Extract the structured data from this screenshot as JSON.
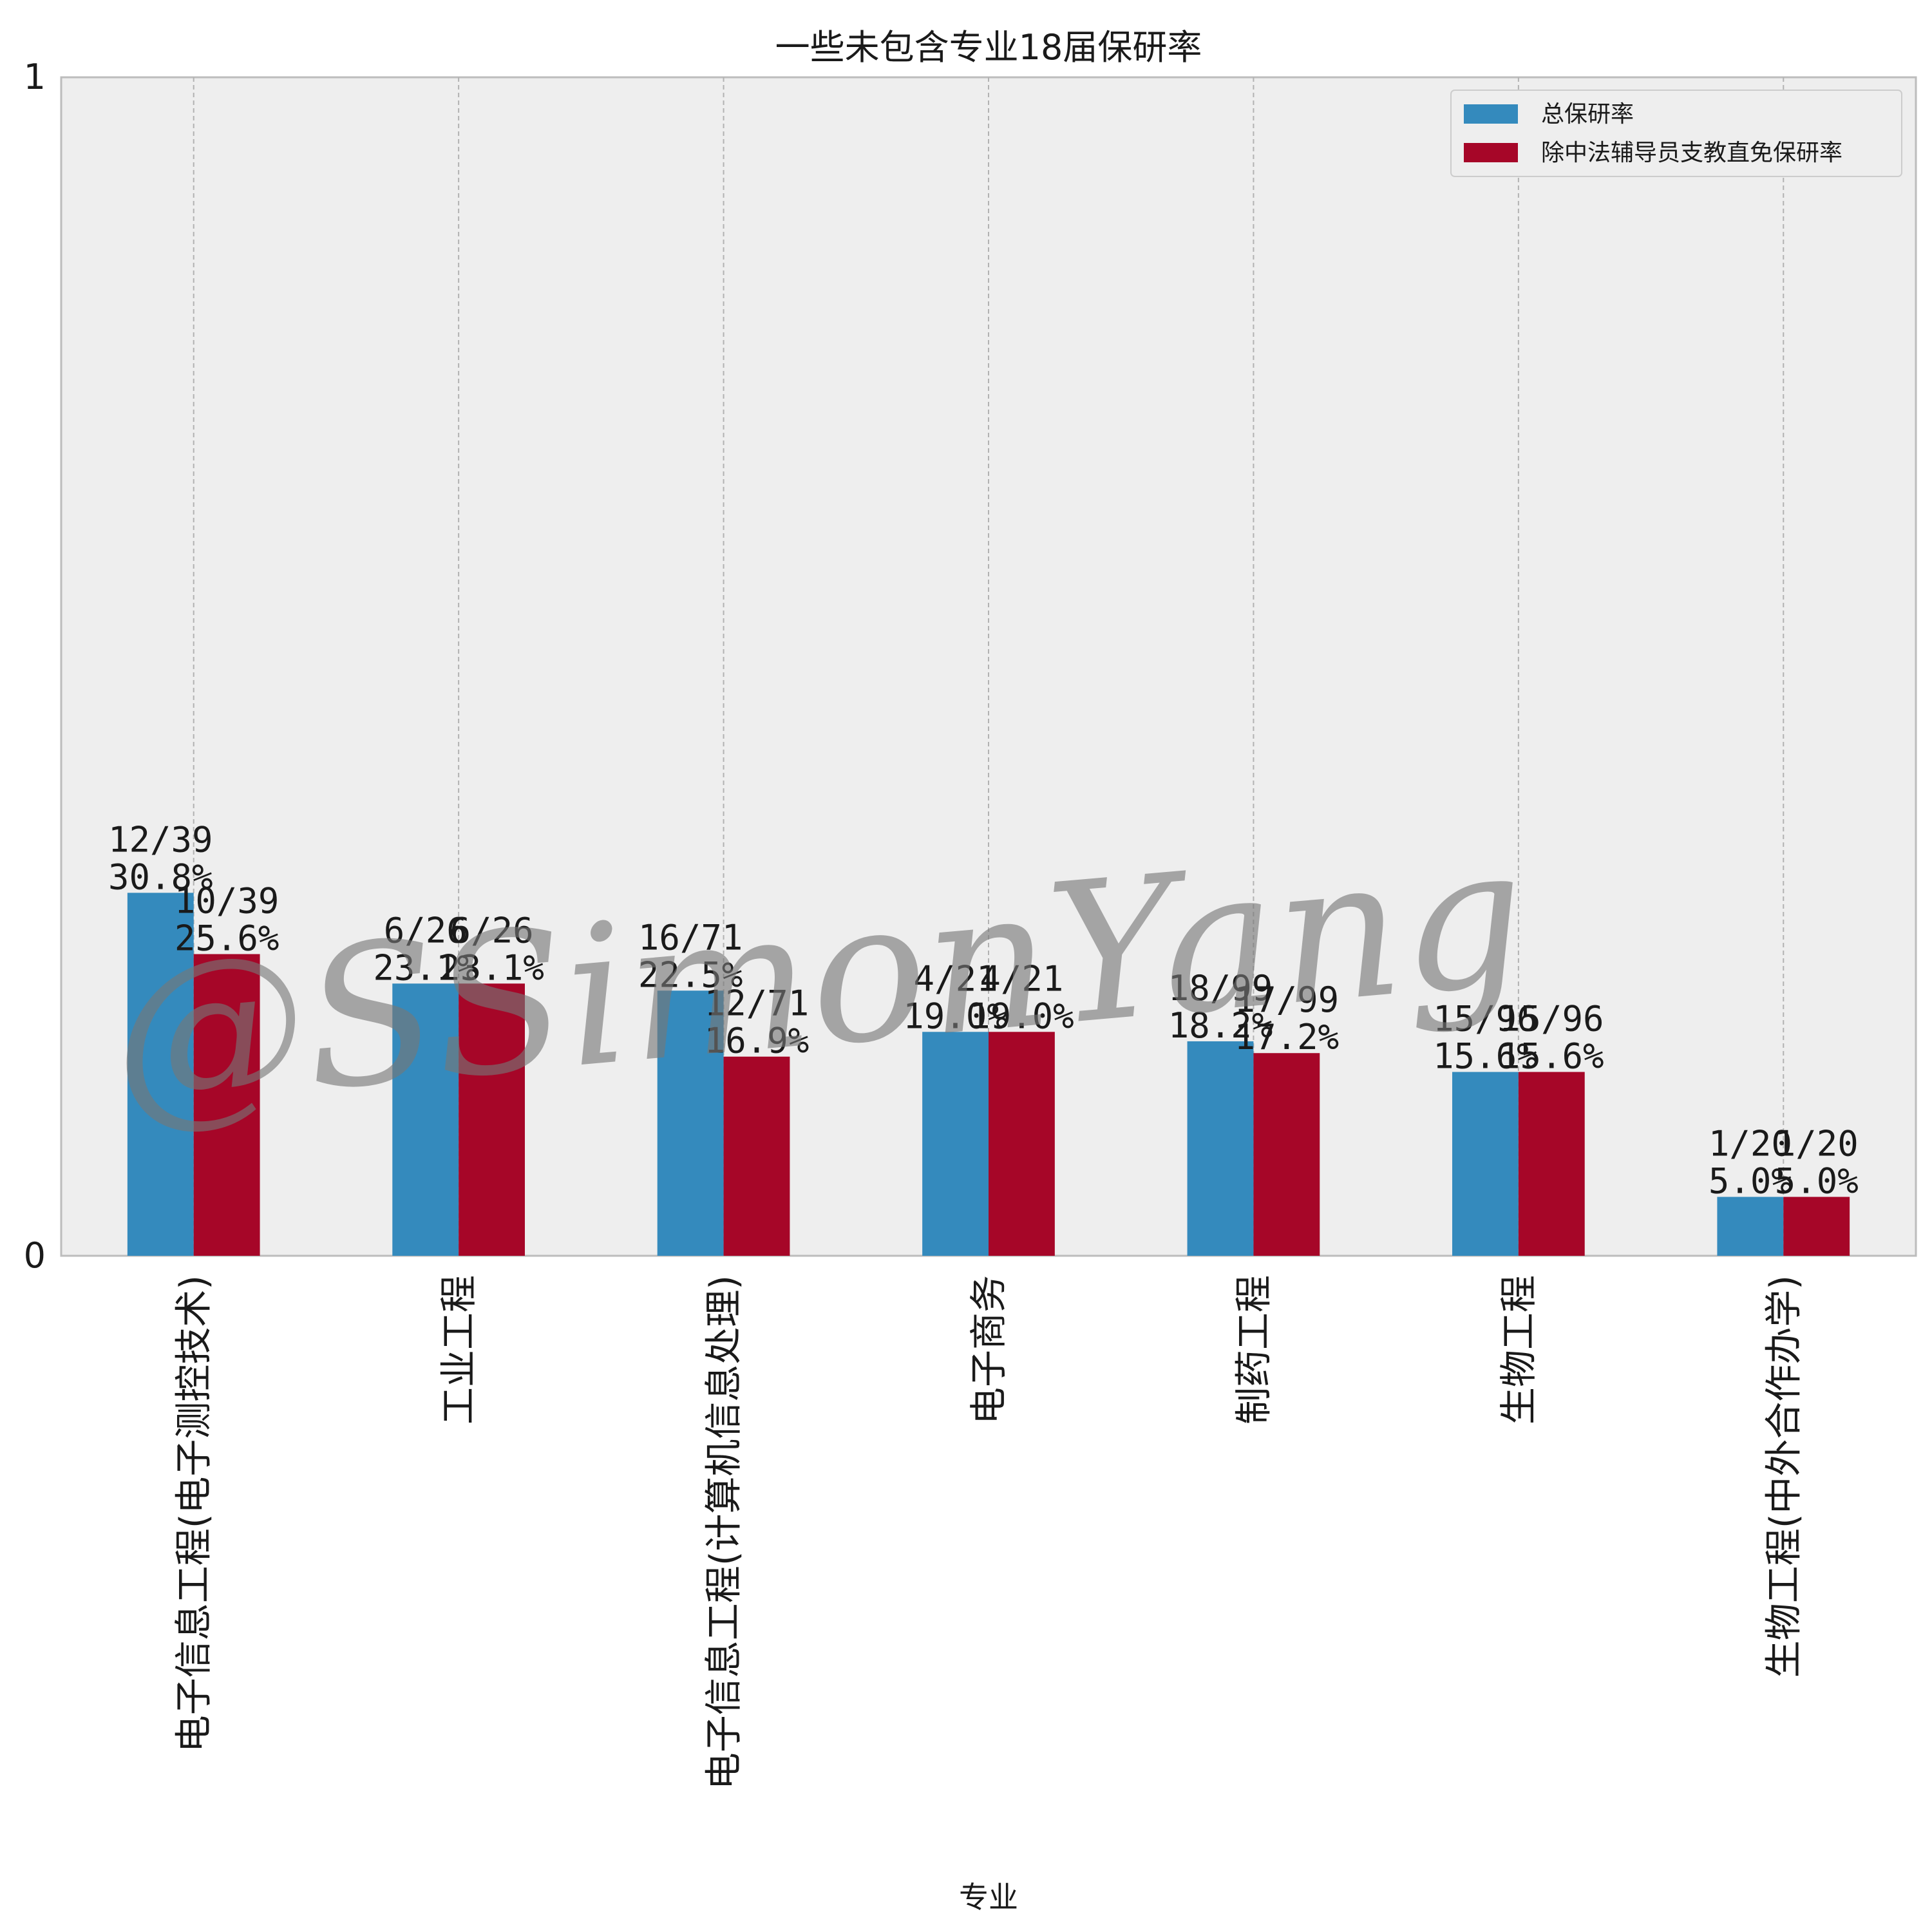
{
  "chart_data": {
    "type": "bar",
    "title": "一些未包含专业18届保研率",
    "xlabel": "专业",
    "ylabel": "",
    "ylim": [
      0,
      1
    ],
    "yticks": [
      "0",
      "1"
    ],
    "grid": true,
    "legend_position": "top-right",
    "categories": [
      "电子信息工程(电子测控技术)",
      "工业工程",
      "电子信息工程(计算机信息处理)",
      "电子商务",
      "制药工程",
      "生物工程",
      "生物工程(中外合作办学)"
    ],
    "series": [
      {
        "name": "总保研率",
        "color": "#348abd",
        "values": [
          0.308,
          0.231,
          0.225,
          0.19,
          0.182,
          0.156,
          0.05
        ],
        "fractions": [
          "12/39",
          "6/26",
          "16/71",
          "4/21",
          "18/99",
          "15/96",
          "1/20"
        ],
        "percents": [
          "30.8%",
          "23.1%",
          "22.5%",
          "19.0%",
          "18.2%",
          "15.6%",
          "5.0%"
        ]
      },
      {
        "name": "除中法辅导员支教直免保研率",
        "color": "#a60628",
        "values": [
          0.256,
          0.231,
          0.169,
          0.19,
          0.172,
          0.156,
          0.05
        ],
        "fractions": [
          "10/39",
          "6/26",
          "12/71",
          "4/21",
          "17/99",
          "15/96",
          "1/20"
        ],
        "percents": [
          "25.6%",
          "23.1%",
          "16.9%",
          "19.0%",
          "17.2%",
          "15.6%",
          "5.0%"
        ]
      }
    ],
    "watermark": "@SSimonYang"
  }
}
